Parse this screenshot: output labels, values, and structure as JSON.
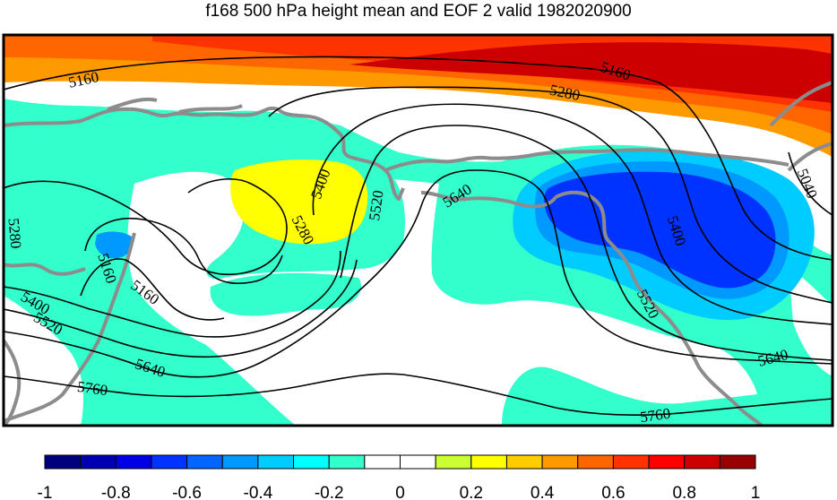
{
  "title": "f168 500 hPa height mean and EOF 2 valid 1982020900",
  "colorbar": {
    "ticks": [
      "-1",
      "-0.8",
      "-0.6",
      "-0.4",
      "-0.2",
      "0",
      "0.2",
      "0.4",
      "0.6",
      "0.8",
      "1"
    ],
    "range": [
      -1,
      1
    ],
    "bins": [
      {
        "value": -0.95,
        "color": "#00007f"
      },
      {
        "value": -0.85,
        "color": "#0000b2"
      },
      {
        "value": -0.75,
        "color": "#0000e5"
      },
      {
        "value": -0.65,
        "color": "#0033ff"
      },
      {
        "value": -0.55,
        "color": "#0066ff"
      },
      {
        "value": -0.45,
        "color": "#0099ff"
      },
      {
        "value": -0.35,
        "color": "#00ccff"
      },
      {
        "value": -0.25,
        "color": "#00ffff"
      },
      {
        "value": -0.15,
        "color": "#33ffcc"
      },
      {
        "value": -0.05,
        "color": "#ffffff"
      },
      {
        "value": 0.05,
        "color": "#ffffff"
      },
      {
        "value": 0.15,
        "color": "#ccff33"
      },
      {
        "value": 0.25,
        "color": "#ffff00"
      },
      {
        "value": 0.35,
        "color": "#ffcc00"
      },
      {
        "value": 0.45,
        "color": "#ff9900"
      },
      {
        "value": 0.55,
        "color": "#ff6600"
      },
      {
        "value": 0.65,
        "color": "#ff3300"
      },
      {
        "value": 0.75,
        "color": "#ff0000"
      },
      {
        "value": 0.85,
        "color": "#cc0000"
      },
      {
        "value": 0.95,
        "color": "#990000"
      }
    ]
  },
  "contour_labels": [
    {
      "id": "c5160a",
      "text": "5160"
    },
    {
      "id": "c5160b",
      "text": "5160"
    },
    {
      "id": "c5280a",
      "text": "5280"
    },
    {
      "id": "c5040",
      "text": "5040"
    },
    {
      "id": "c5280b",
      "text": "5280"
    },
    {
      "id": "c5400a",
      "text": "5400"
    },
    {
      "id": "c5520a",
      "text": "5520"
    },
    {
      "id": "c5640a",
      "text": "5640"
    },
    {
      "id": "c5400b",
      "text": "5400"
    },
    {
      "id": "c5280c",
      "text": "5280"
    },
    {
      "id": "c5160c",
      "text": "5160"
    },
    {
      "id": "c5160d",
      "text": "5160"
    },
    {
      "id": "c5400c",
      "text": "5400"
    },
    {
      "id": "c5520b",
      "text": "5520"
    },
    {
      "id": "c5640b",
      "text": "5640"
    },
    {
      "id": "c5760a",
      "text": "5760"
    },
    {
      "id": "c5520c",
      "text": "5520"
    },
    {
      "id": "c5640c",
      "text": "5640"
    },
    {
      "id": "c5760b",
      "text": "5760"
    }
  ],
  "colors": {
    "coastline": "#8c8c8c",
    "contour": "#000000"
  }
}
